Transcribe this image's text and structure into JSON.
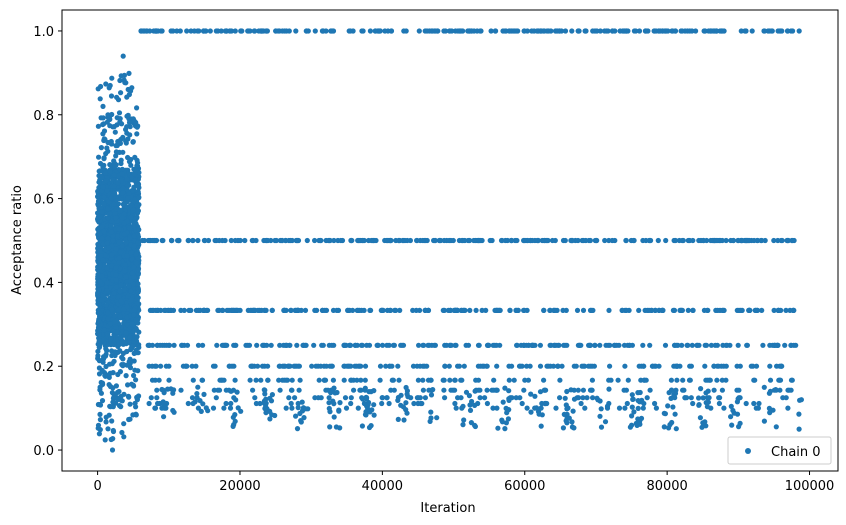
{
  "chart_data": {
    "type": "scatter",
    "title": "",
    "xlabel": "Iteration",
    "ylabel": "Acceptance ratio",
    "xlim": [
      -5000,
      104000
    ],
    "ylim": [
      -0.05,
      1.05
    ],
    "x_ticks": [
      0,
      20000,
      40000,
      60000,
      80000,
      100000
    ],
    "x_tick_labels": [
      "0",
      "20000",
      "40000",
      "60000",
      "80000",
      "100000"
    ],
    "y_ticks": [
      0.0,
      0.2,
      0.4,
      0.6,
      0.8,
      1.0
    ],
    "y_tick_labels": [
      "0.0",
      "0.2",
      "0.4",
      "0.6",
      "0.8",
      "1.0"
    ],
    "grid": false,
    "legend_position": "bottom-right",
    "color": "#1f77b4",
    "series": [
      {
        "name": "Chain 0",
        "marker": "circle",
        "description_bands": {
          "burn_in_x_range": [
            0,
            6000
          ],
          "burn_in_y_range": [
            0.0,
            0.95
          ],
          "levels": [
            1.0,
            0.5,
            0.3333,
            0.25,
            0.2,
            0.1667,
            0.1429,
            0.125,
            0.1111,
            0.1
          ],
          "level_x_start": 6000,
          "level_x_end": 99000
        }
      }
    ]
  }
}
